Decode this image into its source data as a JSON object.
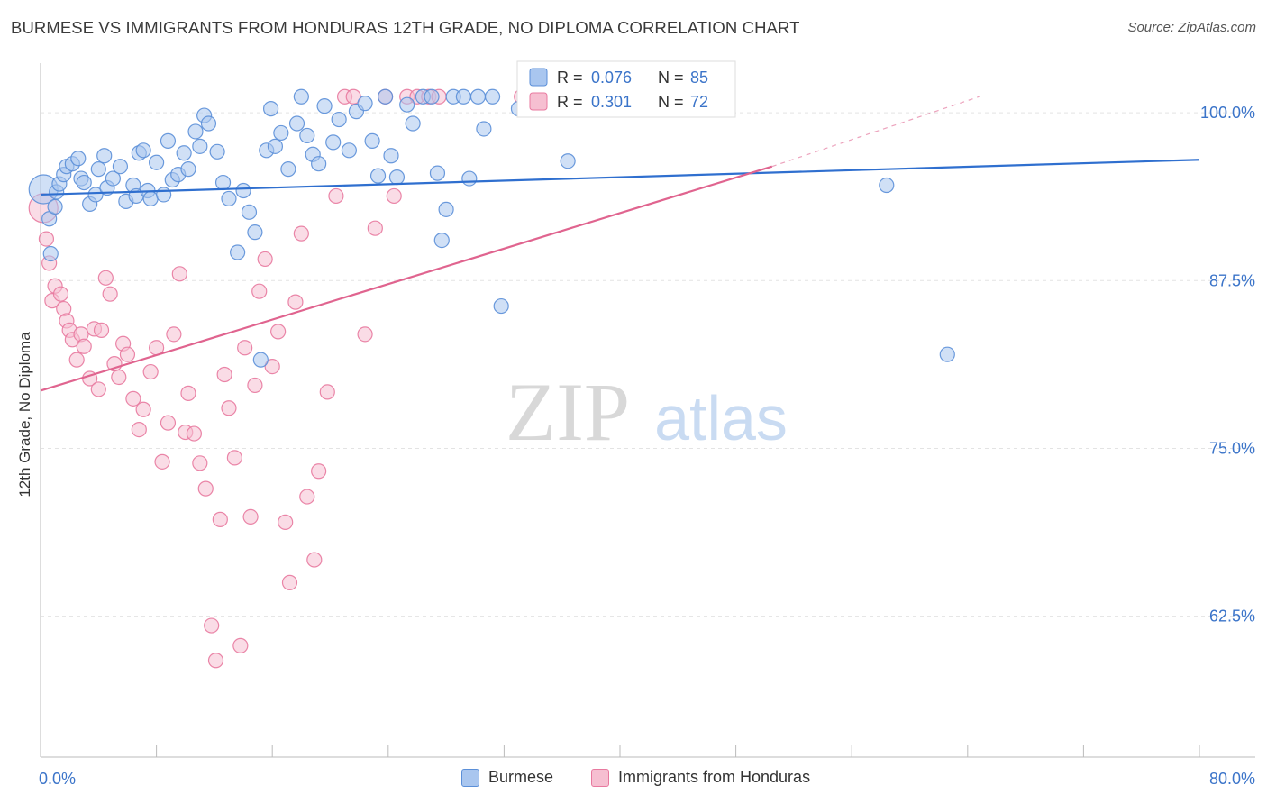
{
  "title": "BURMESE VS IMMIGRANTS FROM HONDURAS 12TH GRADE, NO DIPLOMA CORRELATION CHART",
  "source": "Source: ZipAtlas.com",
  "watermark": {
    "zip": "ZIP",
    "atlas": "atlas"
  },
  "colors": {
    "blue": "#5b8fd8",
    "blue_fill": "#a9c6ef",
    "pink": "#e8799f",
    "pink_fill": "#f6bfd1",
    "blue_line": "#2f6fcf",
    "pink_line": "#e0648f",
    "axis_text": "#3b74c9"
  },
  "legend_box": {
    "rows": [
      {
        "r_label": "R =",
        "r_value": "0.076",
        "n_label": "N =",
        "n_value": "85"
      },
      {
        "r_label": "R =",
        "r_value": "0.301",
        "n_label": "N =",
        "n_value": "72"
      }
    ]
  },
  "chart_data": {
    "type": "scatter",
    "xlabel": "",
    "ylabel": "12th Grade, No Diploma",
    "x_tick_labels": [
      "0.0%",
      "80.0%"
    ],
    "y_tick_labels": [
      "100.0%",
      "87.5%",
      "75.0%",
      "62.5%"
    ],
    "xlim": [
      0,
      80
    ],
    "ylim": [
      50.8,
      102.5
    ],
    "y_ticks": [
      98.8,
      86.3,
      73.8,
      61.3
    ],
    "grid": true,
    "legend_position": "bottom",
    "series": [
      {
        "name": "Burmese",
        "color": "#5b8fd8",
        "trend": {
          "x0": 0,
          "y0": 92.7,
          "x1": 80,
          "y1": 95.3
        },
        "points": [
          [
            0.2,
            93.1
          ],
          [
            0.6,
            90.9
          ],
          [
            0.7,
            88.3
          ],
          [
            1.0,
            91.8
          ],
          [
            1.1,
            92.9
          ],
          [
            1.3,
            93.5
          ],
          [
            1.6,
            94.2
          ],
          [
            1.8,
            94.8
          ],
          [
            2.2,
            95.0
          ],
          [
            2.6,
            95.4
          ],
          [
            2.8,
            93.9
          ],
          [
            3.0,
            93.6
          ],
          [
            3.4,
            92.0
          ],
          [
            3.8,
            92.7
          ],
          [
            4.0,
            94.6
          ],
          [
            4.4,
            95.6
          ],
          [
            4.6,
            93.2
          ],
          [
            5.0,
            93.9
          ],
          [
            5.5,
            94.8
          ],
          [
            5.9,
            92.2
          ],
          [
            6.4,
            93.4
          ],
          [
            6.6,
            92.6
          ],
          [
            6.8,
            95.8
          ],
          [
            7.1,
            96.0
          ],
          [
            7.4,
            93.0
          ],
          [
            7.6,
            92.4
          ],
          [
            8.0,
            95.1
          ],
          [
            8.5,
            92.7
          ],
          [
            8.8,
            96.7
          ],
          [
            9.1,
            93.8
          ],
          [
            9.5,
            94.2
          ],
          [
            9.9,
            95.8
          ],
          [
            10.2,
            94.6
          ],
          [
            10.7,
            97.4
          ],
          [
            11.0,
            96.3
          ],
          [
            11.3,
            98.6
          ],
          [
            11.6,
            98.0
          ],
          [
            12.2,
            95.9
          ],
          [
            12.6,
            93.6
          ],
          [
            13.0,
            92.4
          ],
          [
            13.6,
            88.4
          ],
          [
            14.0,
            93.0
          ],
          [
            14.4,
            91.4
          ],
          [
            14.8,
            89.9
          ],
          [
            15.2,
            80.4
          ],
          [
            15.6,
            96.0
          ],
          [
            15.9,
            99.1
          ],
          [
            16.2,
            96.3
          ],
          [
            16.6,
            97.3
          ],
          [
            17.1,
            94.6
          ],
          [
            17.7,
            98.0
          ],
          [
            18.0,
            100.0
          ],
          [
            18.4,
            97.1
          ],
          [
            18.8,
            95.7
          ],
          [
            19.2,
            95.0
          ],
          [
            19.6,
            99.3
          ],
          [
            20.2,
            96.6
          ],
          [
            20.6,
            98.3
          ],
          [
            21.3,
            96.0
          ],
          [
            21.8,
            98.9
          ],
          [
            22.4,
            99.5
          ],
          [
            22.9,
            96.7
          ],
          [
            23.3,
            94.1
          ],
          [
            23.8,
            100.0
          ],
          [
            24.2,
            95.6
          ],
          [
            24.6,
            94.0
          ],
          [
            25.3,
            99.4
          ],
          [
            25.7,
            98.0
          ],
          [
            26.4,
            100.0
          ],
          [
            27.0,
            100.0
          ],
          [
            27.4,
            94.3
          ],
          [
            27.7,
            89.3
          ],
          [
            28.0,
            91.6
          ],
          [
            28.5,
            100.0
          ],
          [
            29.2,
            100.0
          ],
          [
            29.6,
            93.9
          ],
          [
            30.2,
            100.0
          ],
          [
            30.6,
            97.6
          ],
          [
            31.2,
            100.0
          ],
          [
            31.8,
            84.4
          ],
          [
            33.0,
            99.1
          ],
          [
            33.5,
            100.0
          ],
          [
            36.4,
            95.2
          ],
          [
            58.4,
            93.4
          ],
          [
            62.6,
            80.8
          ]
        ]
      },
      {
        "name": "Immigrants from Honduras",
        "color": "#e8799f",
        "trend": {
          "x0": 0,
          "y0": 78.1,
          "x1": 50.5,
          "y1": 94.8,
          "x_dash_end": 64.8,
          "y_dash_end": 100.0
        },
        "points": [
          [
            0.2,
            91.7
          ],
          [
            0.4,
            89.4
          ],
          [
            0.6,
            87.6
          ],
          [
            0.8,
            84.8
          ],
          [
            1.0,
            85.9
          ],
          [
            1.4,
            85.3
          ],
          [
            1.6,
            84.2
          ],
          [
            1.8,
            83.3
          ],
          [
            2.0,
            82.6
          ],
          [
            2.2,
            81.9
          ],
          [
            2.5,
            80.4
          ],
          [
            2.8,
            82.3
          ],
          [
            3.0,
            81.4
          ],
          [
            3.4,
            79.0
          ],
          [
            3.7,
            82.7
          ],
          [
            4.0,
            78.2
          ],
          [
            4.2,
            82.6
          ],
          [
            4.5,
            86.5
          ],
          [
            4.8,
            85.3
          ],
          [
            5.1,
            80.1
          ],
          [
            5.4,
            79.1
          ],
          [
            5.7,
            81.6
          ],
          [
            6.0,
            80.8
          ],
          [
            6.4,
            77.5
          ],
          [
            6.8,
            75.2
          ],
          [
            7.1,
            76.7
          ],
          [
            7.6,
            79.5
          ],
          [
            8.0,
            81.3
          ],
          [
            8.4,
            72.8
          ],
          [
            8.8,
            75.7
          ],
          [
            9.2,
            82.3
          ],
          [
            9.6,
            86.8
          ],
          [
            10.0,
            75.0
          ],
          [
            10.2,
            77.9
          ],
          [
            10.6,
            74.9
          ],
          [
            11.0,
            72.7
          ],
          [
            11.4,
            70.8
          ],
          [
            11.8,
            60.6
          ],
          [
            12.1,
            58.0
          ],
          [
            12.4,
            68.5
          ],
          [
            12.7,
            79.3
          ],
          [
            13.0,
            76.8
          ],
          [
            13.4,
            73.1
          ],
          [
            13.8,
            59.1
          ],
          [
            14.1,
            81.3
          ],
          [
            14.5,
            68.7
          ],
          [
            14.8,
            78.5
          ],
          [
            15.1,
            85.5
          ],
          [
            15.5,
            87.9
          ],
          [
            16.0,
            79.9
          ],
          [
            16.4,
            82.5
          ],
          [
            16.9,
            68.3
          ],
          [
            17.2,
            63.8
          ],
          [
            17.6,
            84.7
          ],
          [
            18.0,
            89.8
          ],
          [
            18.4,
            70.2
          ],
          [
            18.9,
            65.5
          ],
          [
            19.2,
            72.1
          ],
          [
            19.8,
            78.0
          ],
          [
            20.4,
            92.6
          ],
          [
            21.0,
            100.0
          ],
          [
            21.6,
            100.0
          ],
          [
            22.4,
            82.3
          ],
          [
            23.1,
            90.2
          ],
          [
            23.8,
            100.0
          ],
          [
            24.4,
            92.6
          ],
          [
            25.3,
            100.0
          ],
          [
            26.0,
            100.0
          ],
          [
            26.8,
            100.0
          ],
          [
            27.5,
            100.0
          ],
          [
            33.2,
            100.0
          ],
          [
            35.6,
            100.0
          ]
        ]
      }
    ]
  }
}
